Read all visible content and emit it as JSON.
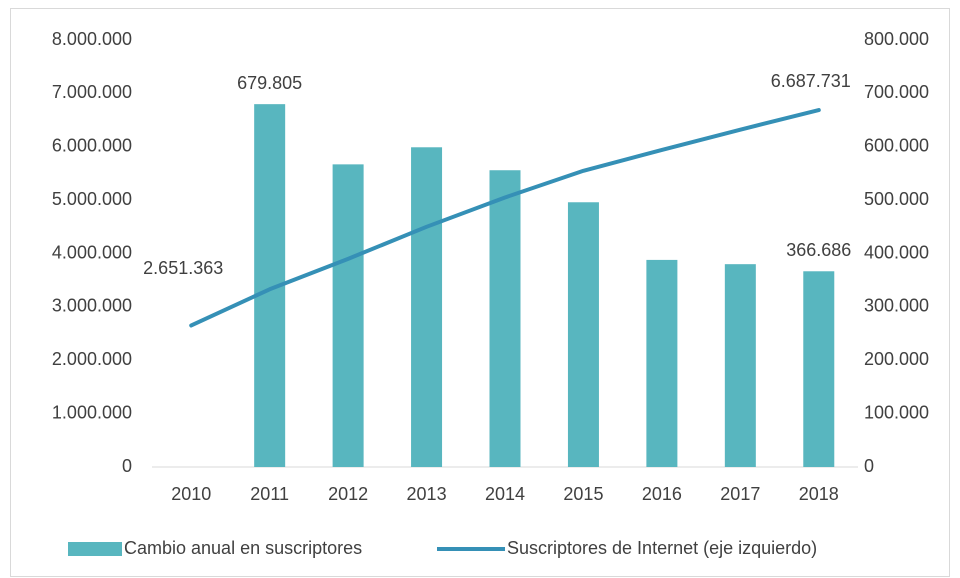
{
  "chart_data": {
    "type": "combo",
    "categories": [
      "2010",
      "2011",
      "2012",
      "2013",
      "2014",
      "2015",
      "2016",
      "2017",
      "2018"
    ],
    "series": [
      {
        "name": "Cambio anual en suscriptores",
        "type": "bar",
        "axis": "y2",
        "color": "#58b6bf",
        "values": [
          null,
          679805,
          567000,
          599000,
          556000,
          496000,
          388000,
          380000,
          366686
        ],
        "value_labels": [
          null,
          "679.805",
          null,
          null,
          null,
          null,
          null,
          null,
          "366.686"
        ]
      },
      {
        "name": "Suscriptores de Internet (eje izquierdo)",
        "type": "line",
        "axis": "y",
        "color": "#3590b6",
        "values": [
          2651363,
          3330000,
          3900000,
          4500000,
          5050000,
          5550000,
          5940000,
          6320000,
          6687731
        ],
        "value_labels": [
          "2.651.363",
          null,
          null,
          null,
          null,
          null,
          null,
          null,
          "6.687.731"
        ]
      }
    ],
    "ylim": [
      0,
      8000000
    ],
    "yticks": [
      0,
      {
        "value": 1000000,
        "label": "1.000.000"
      },
      {
        "value": 2000000,
        "label": "2.000.000"
      },
      {
        "value": 3000000,
        "label": "3.000.000"
      },
      {
        "value": 4000000,
        "label": "4.000.000"
      },
      {
        "value": 5000000,
        "label": "5.000.000"
      },
      {
        "value": 6000000,
        "label": "6.000.000"
      },
      {
        "value": 7000000,
        "label": "7.000.000"
      },
      {
        "value": 8000000,
        "label": "8.000.000"
      }
    ],
    "y2lim": [
      0,
      800000
    ],
    "y2ticks": [
      0,
      {
        "value": 100000,
        "label": "100.000"
      },
      {
        "value": 200000,
        "label": "200.000"
      },
      {
        "value": 300000,
        "label": "300.000"
      },
      {
        "value": 400000,
        "label": "400.000"
      },
      {
        "value": 500000,
        "label": "500.000"
      },
      {
        "value": 600000,
        "label": "600.000"
      },
      {
        "value": 700000,
        "label": "700.000"
      },
      {
        "value": 800000,
        "label": "800.000"
      }
    ],
    "legend": "bottom"
  }
}
